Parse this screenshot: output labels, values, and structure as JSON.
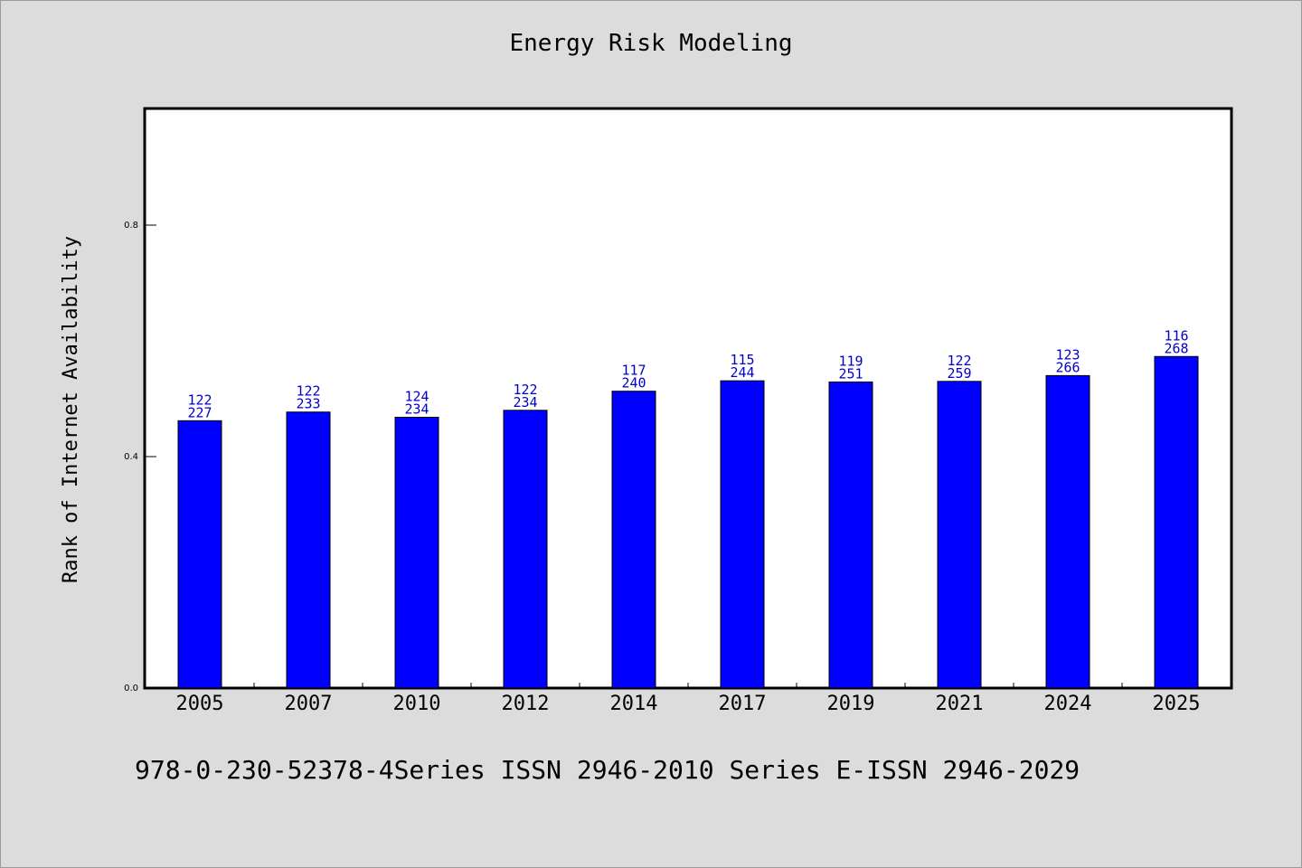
{
  "chart_data": {
    "type": "bar",
    "title": "Energy Risk Modeling",
    "xlabel": "",
    "ylabel": "Rank of Internet Availability",
    "categories": [
      "2005",
      "2007",
      "2010",
      "2012",
      "2014",
      "2017",
      "2019",
      "2021",
      "2024",
      "2025"
    ],
    "values": [
      0.462,
      0.477,
      0.468,
      0.48,
      0.513,
      0.531,
      0.529,
      0.53,
      0.54,
      0.573
    ],
    "data_labels": [
      [
        "122",
        "227"
      ],
      [
        "122",
        "233"
      ],
      [
        "124",
        "234"
      ],
      [
        "122",
        "234"
      ],
      [
        "117",
        "240"
      ],
      [
        "115",
        "244"
      ],
      [
        "119",
        "251"
      ],
      [
        "122",
        "259"
      ],
      [
        "123",
        "266"
      ],
      [
        "116",
        "268"
      ]
    ],
    "ylim": [
      0,
      1.0
    ],
    "yticks": [
      0.0,
      0.4,
      0.8
    ],
    "ytick_labels": [
      "0.0",
      "0.4",
      "0.8"
    ],
    "grid": false,
    "bar_color": "#0000ff",
    "label_color": "#0000cc"
  },
  "footer": {
    "note": "978-0-230-52378-4Series ISSN 2946-2010 Series E-ISSN 2946-2029"
  }
}
